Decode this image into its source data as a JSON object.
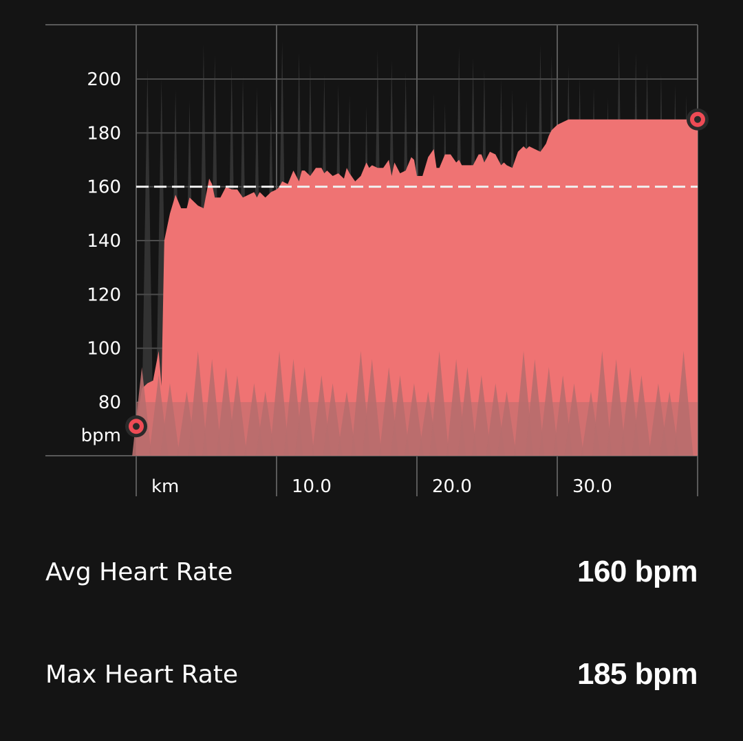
{
  "chart_data": {
    "type": "area",
    "ylabel": "bpm",
    "xlabel": "km",
    "yticks": [
      80,
      100,
      120,
      140,
      160,
      180,
      200
    ],
    "xticks": [
      10.0,
      20.0,
      30.0
    ],
    "xtick_labels": [
      "10.0",
      "20.0",
      "30.0"
    ],
    "ylim": [
      60,
      220
    ],
    "xlim": [
      0,
      40
    ],
    "average_line": 160,
    "series": [
      {
        "role": "heart-rate",
        "x": [
          0,
          0.4,
          0.8,
          1.2,
          1.6,
          1.8,
          2.0,
          2.4,
          2.8,
          3.2,
          3.6,
          3.8,
          4.0,
          4.4,
          4.8,
          5.2,
          5.4,
          5.6,
          6.0,
          6.4,
          6.8,
          7.0,
          7.2,
          7.6,
          8.0,
          8.4,
          8.6,
          8.8,
          9.2,
          9.6,
          10.0,
          10.2,
          10.4,
          10.8,
          11.2,
          11.6,
          11.8,
          12.0,
          12.4,
          12.8,
          13.2,
          13.4,
          13.6,
          14.0,
          14.4,
          14.8,
          15.0,
          15.2,
          15.6,
          16.0,
          16.4,
          16.6,
          16.8,
          17.2,
          17.6,
          18.0,
          18.2,
          18.4,
          18.8,
          19.2,
          19.6,
          19.8,
          20.0,
          20.4,
          20.8,
          21.2,
          21.4,
          21.6,
          22.0,
          22.4,
          22.8,
          23.0,
          23.2,
          23.6,
          24.0,
          24.4,
          24.6,
          24.8,
          25.2,
          25.6,
          26.0,
          26.2,
          26.4,
          26.8,
          27.2,
          27.6,
          27.8,
          28.0,
          28.4,
          28.8,
          29.2,
          29.4,
          29.6,
          30.0,
          30.4,
          30.8,
          31.0,
          31.2,
          31.6,
          32.0,
          32.4,
          32.6,
          32.8,
          33.2,
          33.6,
          34.0,
          34.2,
          34.4,
          34.8,
          35.2,
          35.6,
          35.8,
          36.0,
          36.4,
          36.8,
          37.2,
          37.4,
          37.6,
          38.0,
          38.4,
          38.8,
          39.0,
          39.2,
          39.6,
          40.0
        ],
        "values": [
          71,
          85,
          87,
          88,
          99,
          86,
          140,
          150,
          157,
          152,
          152,
          156,
          155,
          153,
          152,
          163,
          161,
          156,
          156,
          160,
          159,
          159,
          159,
          156,
          157,
          158,
          156,
          158,
          156,
          158,
          159,
          160,
          162,
          161,
          166,
          162,
          166,
          166,
          164,
          167,
          167,
          165,
          166,
          164,
          165,
          163,
          167,
          165,
          162,
          164,
          169,
          167,
          168,
          167,
          167,
          170,
          164,
          169,
          165,
          166,
          171,
          170,
          164,
          164,
          171,
          174,
          167,
          167,
          172,
          172,
          169,
          170,
          168,
          168,
          168,
          172,
          172,
          169,
          173,
          172,
          168,
          169,
          168,
          167,
          173,
          175,
          174,
          175,
          174,
          173,
          176,
          179,
          181,
          183,
          184,
          185,
          185,
          185,
          185,
          185,
          185,
          185,
          185,
          185,
          185,
          185,
          185,
          185,
          185,
          185,
          185,
          185,
          185,
          185,
          185,
          185,
          185,
          185,
          185,
          185,
          185,
          185,
          185,
          185,
          185
        ]
      }
    ],
    "markers": [
      {
        "x": 0,
        "y": 71
      },
      {
        "x": 40,
        "y": 185
      }
    ],
    "colors": {
      "fill": "#ef7373",
      "fill_light": "#f47878",
      "fill_shadow": "#b86d6d",
      "spike": "#4a4a4a",
      "grid": "#5a5a5a",
      "avg_line": "#f0f0f0",
      "marker_ring": "#ef4b55",
      "background": "#141414"
    }
  },
  "stats": {
    "avg_label": "Avg Heart Rate",
    "avg_value": "160 bpm",
    "max_label": "Max Heart Rate",
    "max_value": "185 bpm"
  }
}
